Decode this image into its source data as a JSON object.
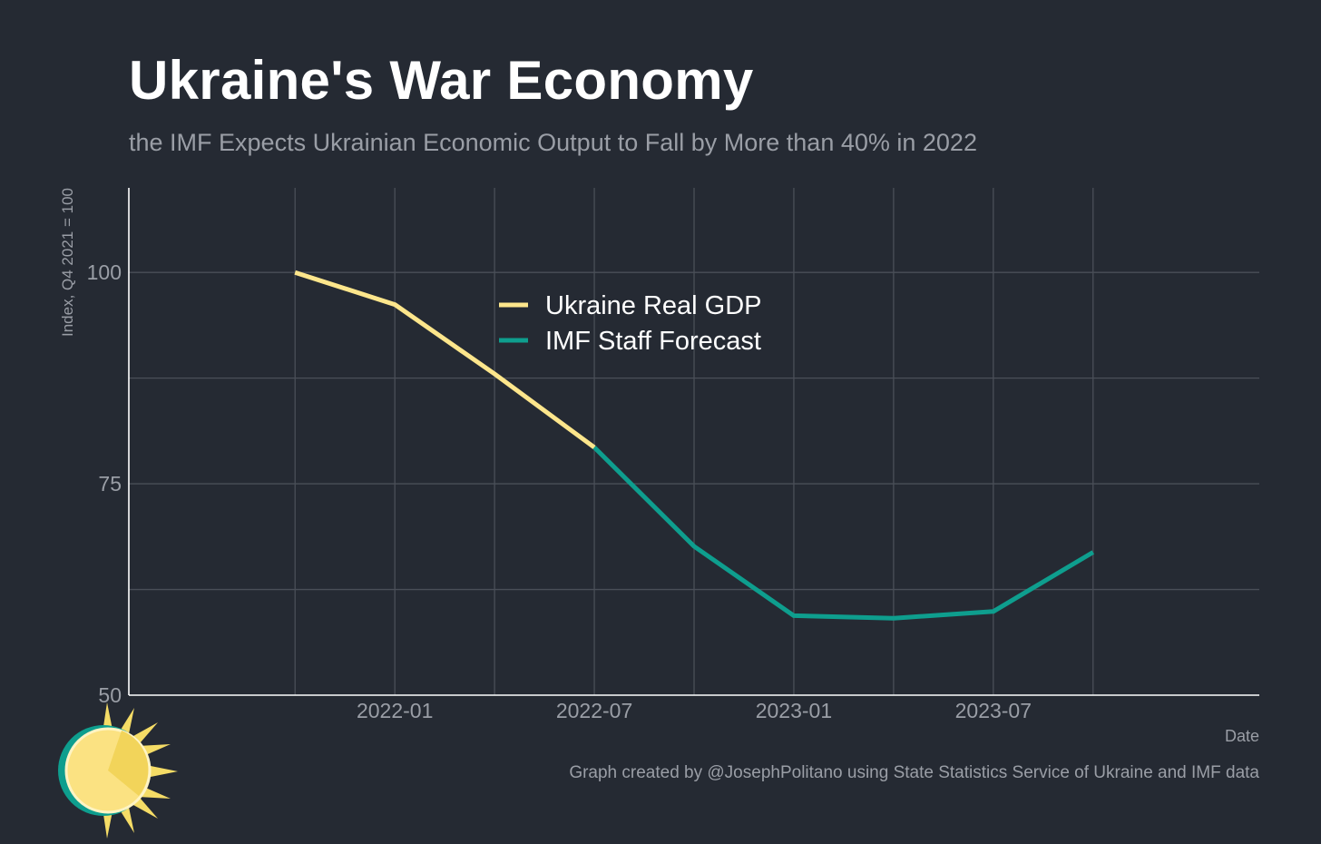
{
  "header": {
    "title": "Ukraine's War Economy",
    "subtitle": "the IMF Expects Ukrainian Economic Output to Fall by More than 40% in 2022"
  },
  "footer": {
    "caption": "Graph created by @JosephPolitano using State Statistics Service of Ukraine and IMF data"
  },
  "colors": {
    "background": "#252a33",
    "grid": "#4a4f58",
    "axis": "#ffffff",
    "text_muted": "#9a9ea6",
    "gdp": "#fde68c",
    "forecast": "#0e9e8e"
  },
  "chart_data": {
    "type": "line",
    "xlabel": "Date",
    "ylabel": "Index, Q4 2021 = 100",
    "ylim": [
      50,
      110
    ],
    "yticks": [
      50,
      75,
      100
    ],
    "x_tick_labels": [
      "2022-01",
      "2022-07",
      "2023-01",
      "2023-07"
    ],
    "grid": true,
    "legend_position": "top-center",
    "series": [
      {
        "name": "Ukraine Real GDP",
        "color": "#fde68c",
        "points": [
          {
            "x": "2021-10",
            "y": 100
          },
          {
            "x": "2022-01",
            "y": 96.2
          },
          {
            "x": "2022-04",
            "y": 88
          },
          {
            "x": "2022-07",
            "y": 79.3
          }
        ]
      },
      {
        "name": "IMF Staff Forecast",
        "color": "#0e9e8e",
        "points": [
          {
            "x": "2022-07",
            "y": 79.3
          },
          {
            "x": "2022-10",
            "y": 67.6
          },
          {
            "x": "2023-01",
            "y": 59.4
          },
          {
            "x": "2023-04",
            "y": 59.1
          },
          {
            "x": "2023-07",
            "y": 59.9
          },
          {
            "x": "2023-10",
            "y": 66.9
          }
        ]
      }
    ]
  }
}
